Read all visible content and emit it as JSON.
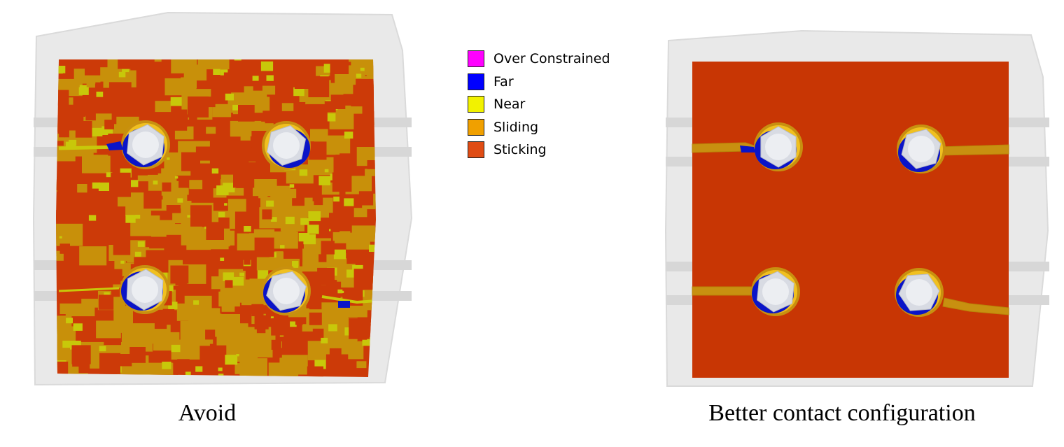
{
  "legend": {
    "items": [
      {
        "label": "Over Constrained",
        "color": "#ff00ff"
      },
      {
        "label": "Far",
        "color": "#0000ff"
      },
      {
        "label": "Near",
        "color": "#f2f200"
      },
      {
        "label": "Sliding",
        "color": "#f0a000"
      },
      {
        "label": "Sticking",
        "color": "#e04c14"
      }
    ]
  },
  "captions": {
    "left": "Avoid",
    "right": "Better contact configuration"
  },
  "colors": {
    "plate": "#e8e8e8",
    "plate_edge": "#d4d4d4",
    "sticking_dark": "#cc3a08",
    "sliding_dark": "#c8900a",
    "near_dark": "#c8c80a",
    "far": "#0a14c8",
    "bolt": "#d8dbe3",
    "bolt_inner": "#eceef2"
  }
}
